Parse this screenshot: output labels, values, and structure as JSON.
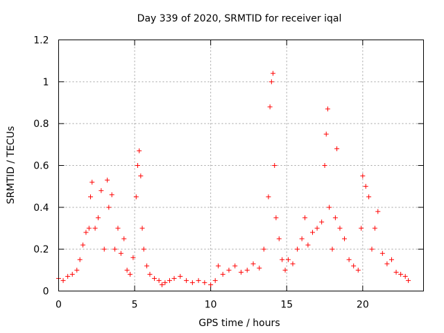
{
  "chart_data": {
    "type": "scatter",
    "title": "Day 339 of 2020, SRMTID for receiver iqal",
    "xlabel": "GPS time / hours",
    "ylabel": "SRMTID / TECUs",
    "xlim": [
      0,
      24
    ],
    "ylim": [
      0,
      1.2
    ],
    "xticks": [
      0,
      5,
      10,
      15,
      20
    ],
    "yticks": [
      0,
      0.2,
      0.4,
      0.6,
      0.8,
      1,
      1.2
    ],
    "xtick_labels": [
      "0",
      "5",
      "10",
      "15",
      "20"
    ],
    "ytick_labels": [
      "0",
      "0.2",
      "0.4",
      "0.6",
      "0.8",
      "1",
      "1.2"
    ],
    "grid": true,
    "marker": "plus",
    "color": "#ff0000",
    "series": [
      {
        "name": "SRMTID",
        "x": [
          0.0,
          0.3,
          0.6,
          0.9,
          1.2,
          1.4,
          1.6,
          1.8,
          2.0,
          2.1,
          2.2,
          2.4,
          2.6,
          2.8,
          3.0,
          3.2,
          3.3,
          3.5,
          3.7,
          3.9,
          4.1,
          4.3,
          4.5,
          4.7,
          4.9,
          5.1,
          5.2,
          5.3,
          5.4,
          5.5,
          5.6,
          5.8,
          6.0,
          6.3,
          6.6,
          6.8,
          7.0,
          7.3,
          7.6,
          8.0,
          8.4,
          8.8,
          9.2,
          9.6,
          10.0,
          10.3,
          10.5,
          10.8,
          11.2,
          11.6,
          12.0,
          12.4,
          12.8,
          13.2,
          13.5,
          13.8,
          13.9,
          14.0,
          14.1,
          14.2,
          14.3,
          14.5,
          14.7,
          14.9,
          15.1,
          15.4,
          15.7,
          16.0,
          16.2,
          16.4,
          16.7,
          17.0,
          17.3,
          17.5,
          17.6,
          17.7,
          17.8,
          18.0,
          18.2,
          18.3,
          18.5,
          18.8,
          19.1,
          19.4,
          19.7,
          19.9,
          20.0,
          20.2,
          20.4,
          20.6,
          20.8,
          21.0,
          21.3,
          21.6,
          21.9,
          22.2,
          22.5,
          22.8,
          23.0
        ],
        "y": [
          0.06,
          0.05,
          0.07,
          0.08,
          0.1,
          0.15,
          0.22,
          0.28,
          0.3,
          0.45,
          0.52,
          0.3,
          0.35,
          0.48,
          0.2,
          0.53,
          0.4,
          0.46,
          0.2,
          0.3,
          0.18,
          0.25,
          0.1,
          0.08,
          0.16,
          0.45,
          0.6,
          0.67,
          0.55,
          0.3,
          0.2,
          0.12,
          0.08,
          0.06,
          0.05,
          0.03,
          0.04,
          0.05,
          0.06,
          0.07,
          0.05,
          0.04,
          0.05,
          0.04,
          0.03,
          0.05,
          0.12,
          0.08,
          0.1,
          0.12,
          0.09,
          0.1,
          0.13,
          0.11,
          0.2,
          0.45,
          0.88,
          1.0,
          1.04,
          0.6,
          0.35,
          0.25,
          0.15,
          0.1,
          0.15,
          0.13,
          0.2,
          0.25,
          0.35,
          0.22,
          0.28,
          0.3,
          0.33,
          0.6,
          0.75,
          0.87,
          0.4,
          0.2,
          0.35,
          0.68,
          0.3,
          0.25,
          0.15,
          0.12,
          0.1,
          0.3,
          0.55,
          0.5,
          0.45,
          0.2,
          0.3,
          0.38,
          0.18,
          0.13,
          0.15,
          0.09,
          0.08,
          0.07,
          0.05
        ]
      }
    ]
  }
}
